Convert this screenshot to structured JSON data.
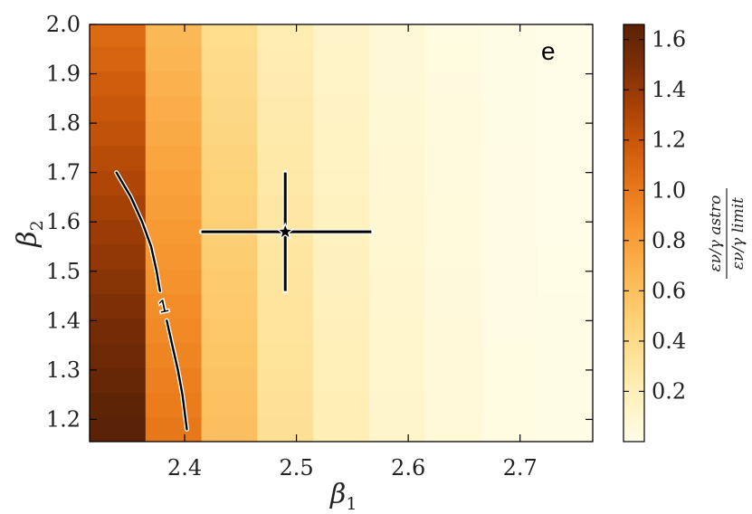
{
  "chart_data": {
    "type": "heatmap",
    "panel_label": "e",
    "xlabel": "β",
    "xlabel_sub": "1",
    "ylabel": "β",
    "ylabel_sub": "2",
    "xlim": [
      2.315,
      2.765
    ],
    "ylim": [
      1.155,
      2.0
    ],
    "x_ticks": [
      2.4,
      2.5,
      2.6,
      2.7
    ],
    "x_tick_labels": [
      "2.4",
      "2.5",
      "2.6",
      "2.7"
    ],
    "y_ticks": [
      1.2,
      1.3,
      1.4,
      1.5,
      1.6,
      1.7,
      1.8,
      1.9,
      2.0
    ],
    "y_tick_labels": [
      "1.2",
      "1.3",
      "1.4",
      "1.5",
      "1.6",
      "1.7",
      "1.8",
      "1.9",
      "2.0"
    ],
    "x_edges": [
      2.315,
      2.365,
      2.415,
      2.465,
      2.515,
      2.565,
      2.615,
      2.665,
      2.715,
      2.765
    ],
    "y_edges": [
      1.155,
      1.205,
      1.255,
      1.305,
      1.355,
      1.405,
      1.455,
      1.505,
      1.555,
      1.605,
      1.655,
      1.705,
      1.755,
      1.805,
      1.855,
      1.905,
      1.955,
      2.0
    ],
    "colorbar": {
      "range": [
        0.0,
        1.66
      ],
      "ticks": [
        0.2,
        0.4,
        0.6,
        0.8,
        1.0,
        1.2,
        1.4,
        1.6
      ],
      "tick_labels": [
        "0.2",
        "0.4",
        "0.6",
        "0.8",
        "1.0",
        "1.2",
        "1.4",
        "1.6"
      ],
      "label_numerator": "εν/γ astro",
      "label_denominator": "εν/γ limit",
      "colors": [
        "#fffde8",
        "#fff2c0",
        "#fee39a",
        "#fdcf73",
        "#fbb653",
        "#f89a33",
        "#e97a1b",
        "#cf5c0c",
        "#a94206",
        "#7c2f06",
        "#5a2206"
      ]
    },
    "best_fit": {
      "x": 2.49,
      "y": 1.58,
      "x_err_low": 0.075,
      "x_err_high": 0.077,
      "y_err_low": 0.12,
      "y_err_high": 0.12,
      "marker": "star"
    },
    "contour": {
      "level": 1,
      "label": "1",
      "points": [
        [
          2.339,
          1.7
        ],
        [
          2.352,
          1.65
        ],
        [
          2.362,
          1.6
        ],
        [
          2.37,
          1.55
        ],
        [
          2.375,
          1.5
        ],
        [
          2.378,
          1.46
        ],
        [
          2.384,
          1.4
        ],
        [
          2.389,
          1.35
        ],
        [
          2.394,
          1.3
        ],
        [
          2.398,
          1.25
        ],
        [
          2.402,
          1.18
        ]
      ],
      "label_position": [
        2.381,
        1.43
      ]
    }
  }
}
